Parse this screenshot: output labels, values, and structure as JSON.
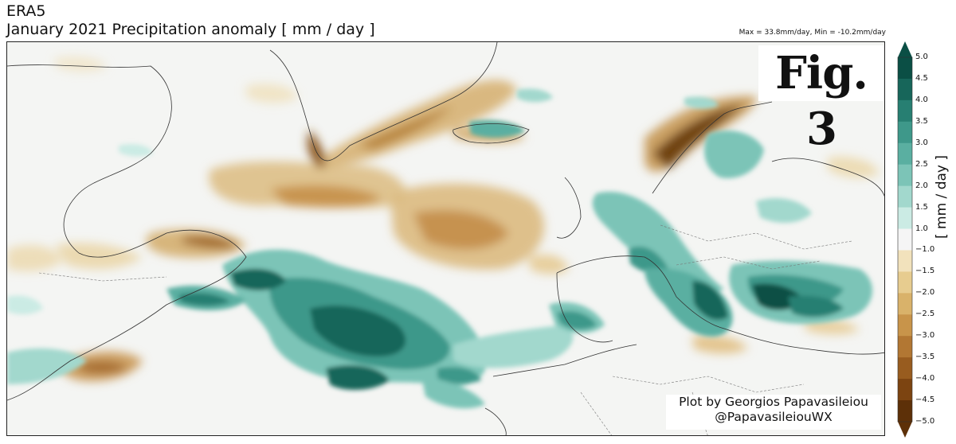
{
  "header": {
    "dataset": "ERA5",
    "title": "January 2021 Precipitation anomaly [ mm / day ]",
    "stats": "Max = 33.8mm/day, Min = -10.2mm/day"
  },
  "figure_label": "Fig. 3",
  "credit": {
    "line1": "Plot by Georgios Papavasileiou",
    "line2": "@PapavasileiouWX"
  },
  "colorbar": {
    "label": "[ mm / day ]",
    "ticks": [
      "5.0",
      "4.5",
      "4.0",
      "3.5",
      "3.0",
      "2.5",
      "2.0",
      "1.5",
      "1.0",
      "−1.0",
      "−1.5",
      "−2.0",
      "−2.5",
      "−3.0",
      "−3.5",
      "−4.0",
      "−4.5",
      "−5.0"
    ],
    "colors_top_to_bottom": [
      "#0b4f45",
      "#17665a",
      "#277f72",
      "#3e988a",
      "#5aafa1",
      "#7cc4b7",
      "#a2d8cd",
      "#cbebe4",
      "#f5f5f5",
      "#f2e2bc",
      "#e7cc8f",
      "#d9b26a",
      "#c8944a",
      "#b27733",
      "#985c1f",
      "#7c4411",
      "#5d3008"
    ]
  },
  "map": {
    "background_color": "#f4f5f3",
    "wet_color": "#2e8f7f",
    "dry_color": "#b98a4a"
  }
}
